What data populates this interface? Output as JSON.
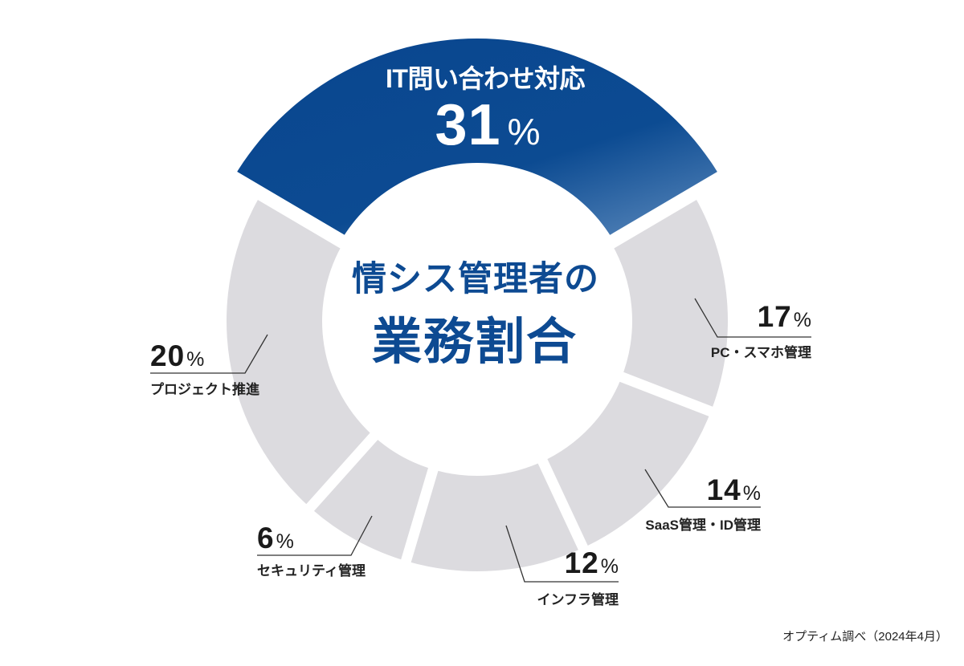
{
  "chart_data": {
    "type": "pie",
    "donut": true,
    "title": "情シス管理者の業務割合",
    "title_lines": [
      "情シス管理者の",
      "業務割合"
    ],
    "unit": "%",
    "categories": [
      "IT問い合わせ対応",
      "PC・スマホ管理",
      "SaaS管理・ID管理",
      "インフラ管理",
      "セキュリティ管理",
      "プロジェクト推進"
    ],
    "values": [
      31,
      17,
      14,
      12,
      6,
      20
    ],
    "segments": [
      {
        "label": "IT問い合わせ対応",
        "value": 31,
        "unit": "%",
        "color": "#0b4a90",
        "highlight": true
      },
      {
        "label": "PC・スマホ管理",
        "value": 17,
        "unit": "%",
        "color": "#dcdbdf"
      },
      {
        "label": "SaaS管理・ID管理",
        "value": 14,
        "unit": "%",
        "color": "#dcdbdf"
      },
      {
        "label": "インフラ管理",
        "value": 12,
        "unit": "%",
        "color": "#dcdbdf"
      },
      {
        "label": "セキュリティ管理",
        "value": 6,
        "unit": "%",
        "color": "#dcdbdf"
      },
      {
        "label": "プロジェクト推進",
        "value": 20,
        "unit": "%",
        "color": "#dcdbdf"
      }
    ],
    "source": "オプティム調べ（2024年4月）",
    "layout": {
      "order": "clockwise from top, highlighted segment centered at top",
      "boundaries_deg": [
        -59.5,
        59.5,
        111.2,
        155,
        196.5,
        221.8,
        300.5
      ],
      "legend": "none (leader-line labels)"
    }
  },
  "colors": {
    "highlight_blue": "#0b4a90",
    "highlight_blue_light": "#5583b8",
    "segment_gray": "#dcdbdf",
    "title_blue": "#0d4a92",
    "text_dark": "#1a1a1a"
  }
}
